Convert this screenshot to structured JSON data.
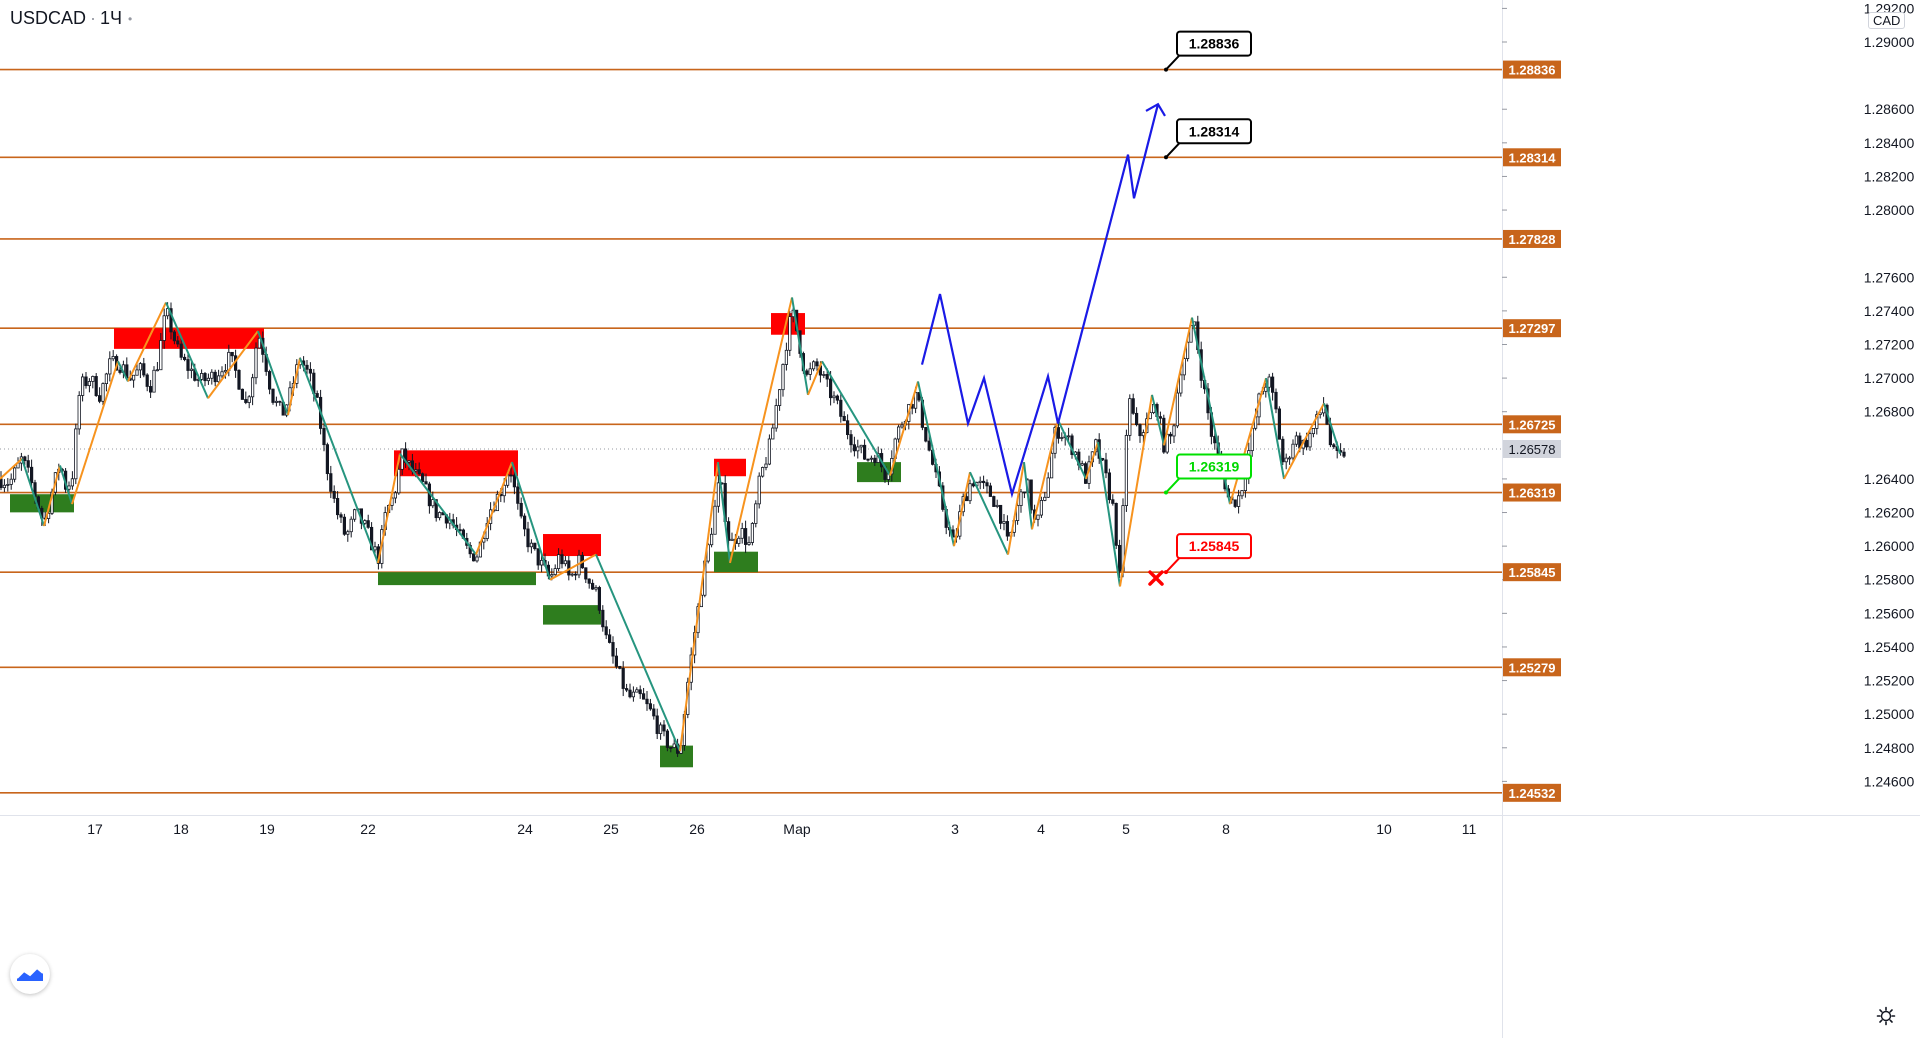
{
  "header": {
    "symbol": "USDCAD",
    "interval": "1Ч"
  },
  "price_axis": {
    "currency": "CAD"
  },
  "icons": {
    "logo": "tradingview-logo-icon",
    "settings": "gear-icon"
  },
  "colors": {
    "level_line": "#c8651b",
    "up_wave": "#f7931e",
    "down_wave": "#26957f",
    "forecast": "#1a1ae6",
    "supply_zone": "#ff0000",
    "demand_zone": "#2e7d1e",
    "candle": "#131722"
  },
  "chart_data": {
    "type": "candlestick",
    "symbol": "USDCAD",
    "interval": "1Ч",
    "ylim": [
      1.244,
      1.2925
    ],
    "y_ticks": [
      "1.29200",
      "1.29000",
      "1.28600",
      "1.28400",
      "1.28200",
      "1.28000",
      "1.27600",
      "1.27400",
      "1.27200",
      "1.27000",
      "1.26800",
      "1.26400",
      "1.26200",
      "1.26000",
      "1.25800",
      "1.25600",
      "1.25400",
      "1.25200",
      "1.25000",
      "1.24800",
      "1.24600"
    ],
    "x_ticks": [
      {
        "label": "17",
        "t": 95
      },
      {
        "label": "18",
        "t": 181
      },
      {
        "label": "19",
        "t": 267
      },
      {
        "label": "22",
        "t": 368
      },
      {
        "label": "24",
        "t": 525
      },
      {
        "label": "25",
        "t": 611
      },
      {
        "label": "26",
        "t": 697
      },
      {
        "label": "Мар",
        "t": 797
      },
      {
        "label": "3",
        "t": 955
      },
      {
        "label": "4",
        "t": 1041
      },
      {
        "label": "5",
        "t": 1126
      },
      {
        "label": "8",
        "t": 1226
      },
      {
        "label": "10",
        "t": 1384
      },
      {
        "label": "11",
        "t": 1469
      }
    ],
    "horizontal_levels": [
      "1.28836",
      "1.28314",
      "1.27828",
      "1.27297",
      "1.26725",
      "1.26319",
      "1.25845",
      "1.25279",
      "1.24532"
    ],
    "current_price": "1.26578",
    "price_path": [
      [
        0,
        1.264
      ],
      [
        10,
        1.2638
      ],
      [
        22,
        1.2652
      ],
      [
        30,
        1.264
      ],
      [
        38,
        1.2625
      ],
      [
        44,
        1.2613
      ],
      [
        52,
        1.2632
      ],
      [
        60,
        1.265
      ],
      [
        66,
        1.2635
      ],
      [
        72,
        1.264
      ],
      [
        80,
        1.2695
      ],
      [
        90,
        1.27
      ],
      [
        100,
        1.269
      ],
      [
        110,
        1.2708
      ],
      [
        118,
        1.271
      ],
      [
        130,
        1.27
      ],
      [
        140,
        1.2705
      ],
      [
        150,
        1.2695
      ],
      [
        158,
        1.271
      ],
      [
        166,
        1.274
      ],
      [
        172,
        1.2728
      ],
      [
        180,
        1.2712
      ],
      [
        190,
        1.2705
      ],
      [
        200,
        1.2698
      ],
      [
        210,
        1.27
      ],
      [
        220,
        1.2705
      ],
      [
        230,
        1.2712
      ],
      [
        238,
        1.27
      ],
      [
        246,
        1.2684
      ],
      [
        252,
        1.27
      ],
      [
        258,
        1.2728
      ],
      [
        264,
        1.2714
      ],
      [
        272,
        1.269
      ],
      [
        282,
        1.2678
      ],
      [
        290,
        1.269
      ],
      [
        300,
        1.2712
      ],
      [
        310,
        1.27
      ],
      [
        318,
        1.2682
      ],
      [
        326,
        1.265
      ],
      [
        336,
        1.2622
      ],
      [
        346,
        1.2605
      ],
      [
        356,
        1.262
      ],
      [
        366,
        1.261
      ],
      [
        378,
        1.2592
      ],
      [
        386,
        1.262
      ],
      [
        394,
        1.263
      ],
      [
        402,
        1.2654
      ],
      [
        412,
        1.2645
      ],
      [
        424,
        1.2635
      ],
      [
        436,
        1.262
      ],
      [
        448,
        1.2618
      ],
      [
        460,
        1.2605
      ],
      [
        470,
        1.2595
      ],
      [
        478,
        1.2595
      ],
      [
        488,
        1.262
      ],
      [
        500,
        1.2632
      ],
      [
        510,
        1.2648
      ],
      [
        520,
        1.2615
      ],
      [
        530,
        1.26
      ],
      [
        540,
        1.259
      ],
      [
        550,
        1.258
      ],
      [
        560,
        1.2595
      ],
      [
        570,
        1.258
      ],
      [
        580,
        1.2592
      ],
      [
        590,
        1.2578
      ],
      [
        598,
        1.257
      ],
      [
        606,
        1.2545
      ],
      [
        618,
        1.2525
      ],
      [
        628,
        1.251
      ],
      [
        640,
        1.251
      ],
      [
        652,
        1.25
      ],
      [
        662,
        1.2487
      ],
      [
        672,
        1.248
      ],
      [
        680,
        1.2478
      ],
      [
        688,
        1.252
      ],
      [
        696,
        1.2555
      ],
      [
        704,
        1.2585
      ],
      [
        712,
        1.2612
      ],
      [
        720,
        1.264
      ],
      [
        730,
        1.26
      ],
      [
        740,
        1.261
      ],
      [
        750,
        1.26
      ],
      [
        760,
        1.264
      ],
      [
        770,
        1.266
      ],
      [
        778,
        1.269
      ],
      [
        786,
        1.272
      ],
      [
        792,
        1.274
      ],
      [
        798,
        1.2725
      ],
      [
        806,
        1.27
      ],
      [
        816,
        1.2708
      ],
      [
        826,
        1.2696
      ],
      [
        836,
        1.2685
      ],
      [
        846,
        1.267
      ],
      [
        856,
        1.266
      ],
      [
        866,
        1.2652
      ],
      [
        876,
        1.2655
      ],
      [
        886,
        1.2642
      ],
      [
        896,
        1.2665
      ],
      [
        906,
        1.268
      ],
      [
        916,
        1.269
      ],
      [
        926,
        1.2665
      ],
      [
        936,
        1.264
      ],
      [
        946,
        1.2615
      ],
      [
        954,
        1.26
      ],
      [
        962,
        1.2625
      ],
      [
        972,
        1.264
      ],
      [
        982,
        1.2635
      ],
      [
        992,
        1.263
      ],
      [
        1000,
        1.262
      ],
      [
        1008,
        1.26
      ],
      [
        1016,
        1.262
      ],
      [
        1026,
        1.264
      ],
      [
        1036,
        1.261
      ],
      [
        1046,
        1.2635
      ],
      [
        1056,
        1.267
      ],
      [
        1066,
        1.2665
      ],
      [
        1076,
        1.2655
      ],
      [
        1086,
        1.264
      ],
      [
        1096,
        1.266
      ],
      [
        1106,
        1.264
      ],
      [
        1114,
        1.262
      ],
      [
        1120,
        1.2578
      ],
      [
        1128,
        1.269
      ],
      [
        1138,
        1.2665
      ],
      [
        1148,
        1.2675
      ],
      [
        1156,
        1.2685
      ],
      [
        1164,
        1.266
      ],
      [
        1172,
        1.2665
      ],
      [
        1180,
        1.2705
      ],
      [
        1188,
        1.272
      ],
      [
        1194,
        1.2735
      ],
      [
        1202,
        1.27
      ],
      [
        1212,
        1.2665
      ],
      [
        1222,
        1.2645
      ],
      [
        1230,
        1.2625
      ],
      [
        1240,
        1.263
      ],
      [
        1250,
        1.266
      ],
      [
        1260,
        1.269
      ],
      [
        1268,
        1.27
      ],
      [
        1276,
        1.268
      ],
      [
        1284,
        1.2645
      ],
      [
        1294,
        1.2665
      ],
      [
        1304,
        1.266
      ],
      [
        1314,
        1.267
      ],
      [
        1324,
        1.2685
      ],
      [
        1332,
        1.2655
      ],
      [
        1340,
        1.2652
      ],
      [
        1346,
        1.2658
      ]
    ],
    "zigzag": [
      [
        0,
        1.264
      ],
      [
        22,
        1.2652
      ],
      [
        44,
        1.2612
      ],
      [
        60,
        1.2648
      ],
      [
        72,
        1.2625
      ],
      [
        118,
        1.271
      ],
      [
        128,
        1.2698
      ],
      [
        166,
        1.2745
      ],
      [
        208,
        1.2688
      ],
      [
        258,
        1.2728
      ],
      [
        288,
        1.2678
      ],
      [
        300,
        1.2712
      ],
      [
        378,
        1.259
      ],
      [
        400,
        1.2655
      ],
      [
        476,
        1.2595
      ],
      [
        512,
        1.265
      ],
      [
        550,
        1.258
      ],
      [
        596,
        1.2595
      ],
      [
        680,
        1.2478
      ],
      [
        718,
        1.265
      ],
      [
        730,
        1.259
      ],
      [
        792,
        1.2748
      ],
      [
        808,
        1.269
      ],
      [
        822,
        1.271
      ],
      [
        890,
        1.2642
      ],
      [
        918,
        1.2698
      ],
      [
        954,
        1.26
      ],
      [
        970,
        1.2644
      ],
      [
        1008,
        1.2595
      ],
      [
        1024,
        1.265
      ],
      [
        1032,
        1.261
      ],
      [
        1058,
        1.2675
      ],
      [
        1086,
        1.264
      ],
      [
        1098,
        1.2662
      ],
      [
        1120,
        1.2576
      ],
      [
        1152,
        1.269
      ],
      [
        1164,
        1.266
      ],
      [
        1192,
        1.2736
      ],
      [
        1230,
        1.2625
      ],
      [
        1266,
        1.27
      ],
      [
        1284,
        1.264
      ],
      [
        1324,
        1.2685
      ],
      [
        1340,
        1.2655
      ]
    ],
    "forecast_path": [
      [
        922,
        1.2708
      ],
      [
        940,
        1.275
      ],
      [
        968,
        1.2673
      ],
      [
        984,
        1.27
      ],
      [
        1012,
        1.2631
      ],
      [
        1048,
        1.2701
      ],
      [
        1058,
        1.2673
      ],
      [
        1128,
        1.2833
      ],
      [
        1134,
        1.2807
      ],
      [
        1158,
        1.2863
      ]
    ],
    "forecast_arrowhead": [
      [
        1146,
        1.2859
      ],
      [
        1158,
        1.2863
      ],
      [
        1165,
        1.2856
      ]
    ],
    "supply_zones": [
      {
        "t0": 114,
        "t1": 264,
        "y0": 1.27174,
        "y1": 1.27297
      },
      {
        "t0": 394,
        "t1": 518,
        "y0": 1.26416,
        "y1": 1.2657
      },
      {
        "t0": 543,
        "t1": 601,
        "y0": 1.25941,
        "y1": 1.26072
      },
      {
        "t0": 714,
        "t1": 746,
        "y0": 1.26416,
        "y1": 1.2652
      },
      {
        "t0": 771,
        "t1": 805,
        "y0": 1.27258,
        "y1": 1.27387
      }
    ],
    "demand_zones": [
      {
        "t0": 10,
        "t1": 74,
        "y0": 1.26201,
        "y1": 1.26309
      },
      {
        "t0": 378,
        "t1": 536,
        "y0": 1.25768,
        "y1": 1.25845
      },
      {
        "t0": 543,
        "t1": 601,
        "y0": 1.25533,
        "y1": 1.25649
      },
      {
        "t0": 714,
        "t1": 758,
        "y0": 1.25845,
        "y1": 1.25967
      },
      {
        "t0": 857,
        "t1": 901,
        "y0": 1.26381,
        "y1": 1.265
      },
      {
        "t0": 660,
        "t1": 693,
        "y0": 1.24684,
        "y1": 1.24813
      }
    ],
    "callouts": [
      {
        "label": "1.28836",
        "anchor_t": 1166,
        "anchor_y": 1.28836,
        "style": "black"
      },
      {
        "label": "1.28314",
        "anchor_t": 1166,
        "anchor_y": 1.28314,
        "style": "black"
      },
      {
        "label": "1.26319",
        "anchor_t": 1166,
        "anchor_y": 1.26319,
        "style": "green"
      },
      {
        "label": "1.25845",
        "anchor_t": 1166,
        "anchor_y": 1.25845,
        "style": "red"
      }
    ],
    "stop_marker": {
      "t": 1156,
      "y": 1.2581,
      "symbol": "cross"
    }
  }
}
